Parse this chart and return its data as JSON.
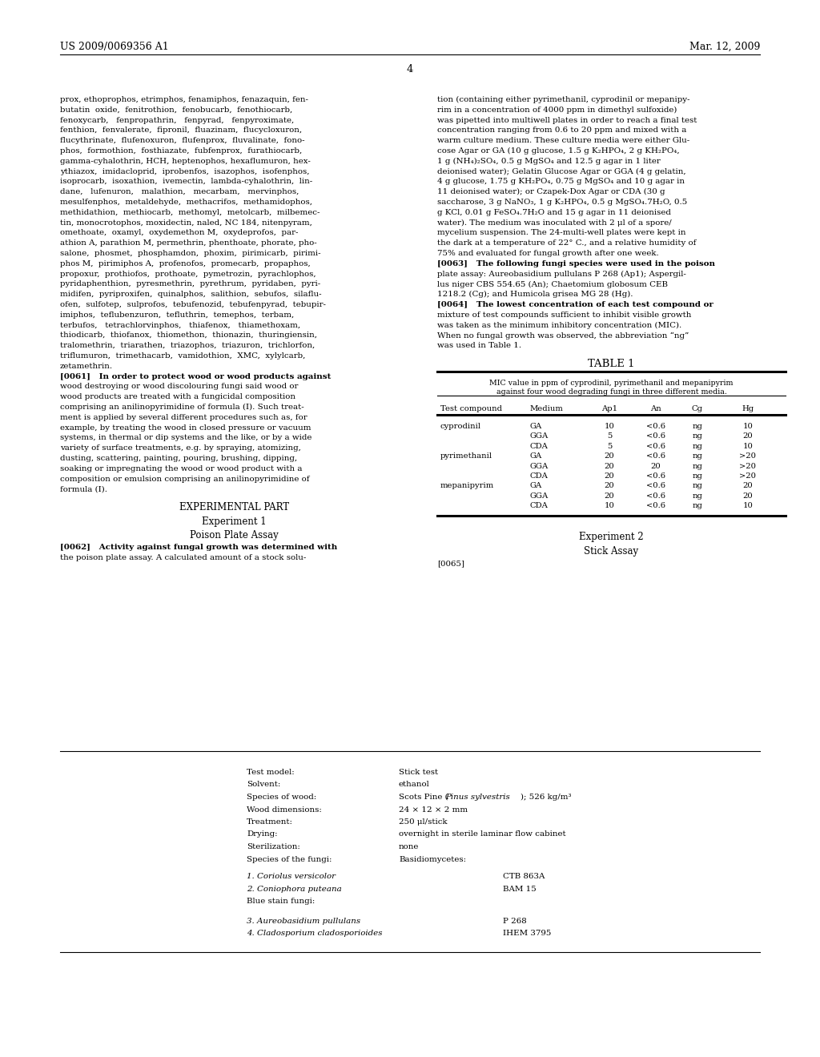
{
  "background_color": "#ffffff",
  "page_number": "4",
  "patent_number": "US 2009/0069356 A1",
  "patent_date": "Mar. 12, 2009",
  "left_col_lines": [
    "prox, ethoprophos, etrimphos, fenamiphos, fenazaquin, fen-",
    "butatin  oxide,  fenitrothion,  fenobucarb,  fenothiocarb,",
    "fenoxycarb,   fenpropathrin,   fenpyrad,   fenpyroximate,",
    "fenthion,  fenvalerate,  fipronil,  fluazinam,  flucycloxuron,",
    "flucythrinate,  flufenoxuron,  flufenprox,  fluvalinate,  fono-",
    "phos,  formothion,  fosthiazate,  fubfenprox,  furathiocarb,",
    "gamma-cyhalothrin, HCH, heptenophos, hexaflumuron, hex-",
    "ythiazox,  imidacloprid,  iprobenfos,  isazophos,  isofenphos,",
    "isoprocarb,  isoxathion,  ivemectin,  lambda-cyhalothrin,  lin-",
    "dane,   lufenuron,   malathion,   mecarbam,   mervinphos,",
    "mesulfenphos,  metaldehyde,  methacrifos,  methamidophos,",
    "methidathion,  methiocarb,  methomyl,  metolcarb,  milbemec-",
    "tin, monocrotophos, moxidectin, naled, NC 184, nitenpyram,",
    "omethoate,  oxamyl,  oxydemethon M,  oxydeprofos,  par-",
    "athion A, parathion M, permethrin, phenthoate, phorate, pho-",
    "salone,  phosmet,  phosphamdon,  phoxim,  pirimicarb,  pirimi-",
    "phos M,  pirimiphos A,  profenofos,  promecarb,  propaphos,",
    "propoxur,  prothiofos,  prothoate,  pymetrozin,  pyrachlophos,",
    "pyridaphenthion,  pyresmethrin,  pyrethrum,  pyridaben,  pyri-",
    "midifen,  pyriproxifen,  quinalphos,  salithion,  sebufos,  silaflu-",
    "ofen,  sulfotep,  sulprofos,  tebufenozid,  tebufenpyrad,  tebupir-",
    "imiphos,  teflubenzuron,  tefluthrin,  temephos,  terbam,",
    "terbufos,   tetrachlorvinphos,   thiafenox,   thiamethoxam,",
    "thiodicarb,  thiofanox,  thiomethon,  thionazin,  thuringiensin,",
    "tralomethrin,  triarathen,  triazophos,  triazuron,  trichlorfon,",
    "triflumuron,  trimethacarb,  vamidothion,  XMC,  xylylcarb,",
    "zetamethrin.",
    "[0061]   In order to protect wood or wood products against",
    "wood destroying or wood discolouring fungi said wood or",
    "wood products are treated with a fungicidal composition",
    "comprising an anilinopyrimidine of formula (I). Such treat-",
    "ment is applied by several different procedures such as, for",
    "example, by treating the wood in closed pressure or vacuum",
    "systems, in thermal or dip systems and the like, or by a wide",
    "variety of surface treatments, e.g. by spraying, atomizing,",
    "dusting, scattering, painting, pouring, brushing, dipping,",
    "soaking or impregnating the wood or wood product with a",
    "composition or emulsion comprising an anilinopyrimidine of",
    "formula (I)."
  ],
  "experimental_part": "EXPERIMENTAL PART",
  "experiment1_title": "Experiment 1",
  "experiment1_subtitle": "Poison Plate Assay",
  "experiment1_text": [
    "[0062]   Activity against fungal growth was determined with",
    "the poison plate assay. A calculated amount of a stock solu-"
  ],
  "right_col_lines": [
    "tion (containing either pyrimethanil, cyprodinil or mepanipy-",
    "rim in a concentration of 4000 ppm in dimethyl sulfoxide)",
    "was pipetted into multiwell plates in order to reach a final test",
    "concentration ranging from 0.6 to 20 ppm and mixed with a",
    "warm culture medium. These culture media were either Glu-",
    "cose Agar or GA (10 g glucose, 1.5 g K₂HPO₄, 2 g KH₂PO₄,",
    "1 g (NH₄)₂SO₄, 0.5 g MgSO₄ and 12.5 g agar in 1 liter",
    "deionised water); Gelatin Glucose Agar or GGA (4 g gelatin,",
    "4 g glucose, 1.75 g KH₂PO₄, 0.75 g MgSO₄ and 10 g agar in",
    "11 deionised water); or Czapek-Dox Agar or CDA (30 g",
    "saccharose, 3 g NaNO₃, 1 g K₂HPO₄, 0.5 g MgSO₄.7H₂O, 0.5",
    "g KCl, 0.01 g FeSO₄.7H₂O and 15 g agar in 11 deionised",
    "water). The medium was inoculated with 2 μl of a spore/",
    "mycelium suspension. The 24-multi-well plates were kept in",
    "the dark at a temperature of 22° C., and a relative humidity of",
    "75% and evaluated for fungal growth after one week.",
    "[0063]   The following fungi species were used in the poison",
    "plate assay: Aureobasidium pullulans P 268 (Ap1); Aspergil-",
    "lus niger CBS 554.65 (An); Chaetomium globosum CEB",
    "1218.2 (Cg); and Humicola grisea MG 28 (Hg).",
    "[0064]   The lowest concentration of each test compound or",
    "mixture of test compounds sufficient to inhibit visible growth",
    "was taken as the minimum inhibitory concentration (MIC).",
    "When no fungal growth was observed, the abbreviation “ng”",
    "was used in Table 1."
  ],
  "table_title": "TABLE 1",
  "table_subtitle1": "MIC value in ppm of cyprodinil, pyrimethanil and mepanipyrim",
  "table_subtitle2": "against four wood degrading fungi in three different media.",
  "table_data": [
    [
      "cyprodinil",
      "GA",
      "10",
      "<0.6",
      "ng",
      "10"
    ],
    [
      "",
      "GGA",
      "5",
      "<0.6",
      "ng",
      "20"
    ],
    [
      "",
      "CDA",
      "5",
      "<0.6",
      "ng",
      "10"
    ],
    [
      "pyrimethanil",
      "GA",
      "20",
      "<0.6",
      "ng",
      ">20"
    ],
    [
      "",
      "GGA",
      "20",
      "20",
      "ng",
      ">20"
    ],
    [
      "",
      "CDA",
      "20",
      "<0.6",
      "ng",
      ">20"
    ],
    [
      "mepanipyrim",
      "GA",
      "20",
      "<0.6",
      "ng",
      "20"
    ],
    [
      "",
      "GGA",
      "20",
      "<0.6",
      "ng",
      "20"
    ],
    [
      "",
      "CDA",
      "10",
      "<0.6",
      "ng",
      "10"
    ]
  ],
  "experiment2_title": "Experiment 2",
  "experiment2_subtitle": "Stick Assay",
  "experiment2_para": "[0065]",
  "stick_labels": [
    "Test model:",
    "Solvent:",
    "Species of wood:",
    "Wood dimensions:",
    "Treatment:",
    "Drying:",
    "Sterilization:",
    "Species of the fungi:"
  ],
  "stick_values": [
    "Stick test",
    "ethanol",
    "Scots Pine (Pinus sylvestris); 526 kg/m³",
    "24 × 12 × 2 mm",
    "250 μl/stick",
    "overnight in sterile laminar flow cabinet",
    "none",
    "Basidiomycetes:"
  ],
  "stick_species": [
    [
      "1. Coriolus versicolor",
      "CTB 863A"
    ],
    [
      "2. Coniophora puteana",
      "BAM 15"
    ],
    [
      "Blue stain fungi:",
      ""
    ],
    [
      "3. Aureobasidium pullulans",
      "P 268"
    ],
    [
      "4. Cladosporium cladosporioides",
      "IHEM 3795"
    ]
  ],
  "pinus_italic": "Pinus sylvestris"
}
